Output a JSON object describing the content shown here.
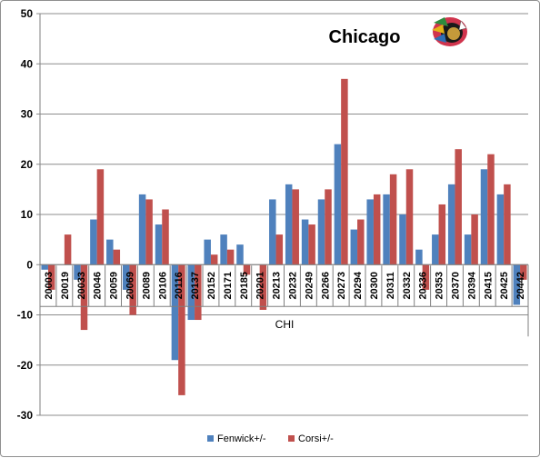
{
  "chart_data": {
    "type": "bar",
    "title": "Chicago",
    "xlabel": "CHI",
    "ylabel": "",
    "ylim": [
      -30,
      50
    ],
    "yticks": [
      -30,
      -20,
      -10,
      0,
      10,
      20,
      30,
      40,
      50
    ],
    "grid": true,
    "legend": "bottom",
    "categories": [
      "20003",
      "20019",
      "20033",
      "20046",
      "20059",
      "20069",
      "20089",
      "20106",
      "20116",
      "20137",
      "20152",
      "20171",
      "20185",
      "20201",
      "20213",
      "20232",
      "20249",
      "20266",
      "20273",
      "20294",
      "20300",
      "20311",
      "20332",
      "20336",
      "20353",
      "20370",
      "20394",
      "20415",
      "20425",
      "20442"
    ],
    "series": [
      {
        "name": "Fenwick+/-",
        "color": "#4f81bd",
        "values": [
          -1,
          0,
          -3,
          9,
          5,
          -5,
          14,
          8,
          -19,
          -11,
          5,
          6,
          4,
          0,
          13,
          16,
          9,
          13,
          24,
          7,
          13,
          14,
          10,
          3,
          6,
          16,
          6,
          19,
          14,
          -8
        ]
      },
      {
        "name": "Corsi+/-",
        "color": "#c0504d",
        "values": [
          -5,
          6,
          -13,
          19,
          3,
          -10,
          13,
          11,
          -26,
          -11,
          2,
          3,
          -2,
          -9,
          6,
          15,
          8,
          15,
          37,
          9,
          14,
          18,
          19,
          -5,
          12,
          23,
          10,
          22,
          16,
          -3
        ]
      }
    ],
    "logo": "blackhawks-logo"
  }
}
